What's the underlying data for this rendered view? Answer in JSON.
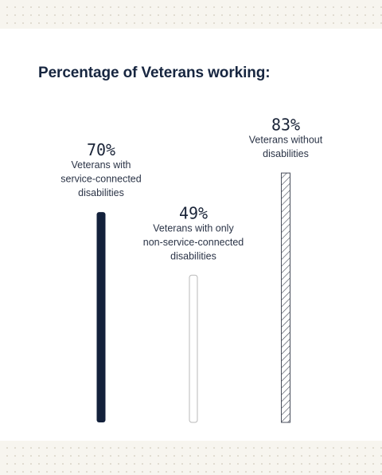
{
  "title": "Percentage of Veterans working:",
  "chart_data": {
    "type": "bar",
    "title": "Percentage of Veterans working:",
    "unit": "%",
    "ylim": [
      0,
      100
    ],
    "grid": false,
    "legend": "none",
    "series": [
      {
        "value": 70,
        "value_label": "70%",
        "label_lines": [
          "Veterans with",
          "service-connected",
          "disabilities"
        ],
        "style": "solid",
        "color": "#13213b"
      },
      {
        "value": 49,
        "value_label": "49%",
        "label_lines": [
          "Veterans with only",
          "non-service-connected",
          "disabilities"
        ],
        "style": "outline",
        "color": "#b9b9b9"
      },
      {
        "value": 83,
        "value_label": "83%",
        "label_lines": [
          "Veterans without",
          "disabilities"
        ],
        "style": "hatched",
        "color": "#4a4f5c"
      }
    ]
  }
}
